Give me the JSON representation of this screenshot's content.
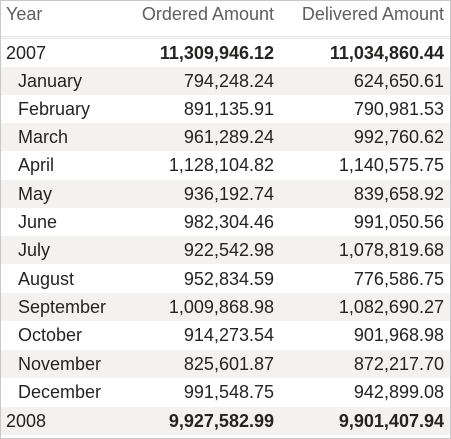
{
  "columns": {
    "year": "Year",
    "ordered": "Ordered Amount",
    "delivered": "Delivered Amount"
  },
  "groups": [
    {
      "year": "2007",
      "ordered": "11,309,946.12",
      "delivered": "11,034,860.44",
      "months": [
        {
          "label": "January",
          "ordered": "794,248.24",
          "delivered": "624,650.61"
        },
        {
          "label": "February",
          "ordered": "891,135.91",
          "delivered": "790,981.53"
        },
        {
          "label": "March",
          "ordered": "961,289.24",
          "delivered": "992,760.62"
        },
        {
          "label": "April",
          "ordered": "1,128,104.82",
          "delivered": "1,140,575.75"
        },
        {
          "label": "May",
          "ordered": "936,192.74",
          "delivered": "839,658.92"
        },
        {
          "label": "June",
          "ordered": "982,304.46",
          "delivered": "991,050.56"
        },
        {
          "label": "July",
          "ordered": "922,542.98",
          "delivered": "1,078,819.68"
        },
        {
          "label": "August",
          "ordered": "952,834.59",
          "delivered": "776,586.75"
        },
        {
          "label": "September",
          "ordered": "1,009,868.98",
          "delivered": "1,082,690.27"
        },
        {
          "label": "October",
          "ordered": "914,273.54",
          "delivered": "901,968.98"
        },
        {
          "label": "November",
          "ordered": "825,601.87",
          "delivered": "872,217.70"
        },
        {
          "label": "December",
          "ordered": "991,548.75",
          "delivered": "942,899.08"
        }
      ]
    },
    {
      "year": "2008",
      "ordered": "9,927,582.99",
      "delivered": "9,901,407.94",
      "months": []
    }
  ],
  "colors": {
    "alt_row": "#f3f2f1",
    "header_text": "#605e5c",
    "body_text": "#252423",
    "border": "#c8c8c8"
  }
}
